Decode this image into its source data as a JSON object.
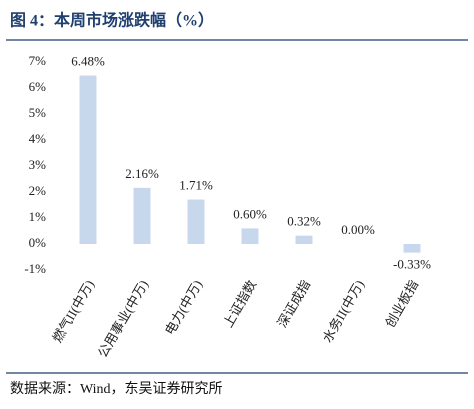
{
  "chart_data": {
    "type": "bar",
    "title": "图 4：本周市场涨跌幅（%）",
    "source": "数据来源：Wind，东吴证券研究所",
    "categories": [
      "燃气II(中万)",
      "公用事业(中万)",
      "电力(中万)",
      "上证指数",
      "深证成指",
      "水务II(中万)",
      "创业板指"
    ],
    "values": [
      6.48,
      2.16,
      1.71,
      0.6,
      0.32,
      0.0,
      -0.33
    ],
    "value_labels": [
      "6.48%",
      "2.16%",
      "1.71%",
      "0.60%",
      "0.32%",
      "0.00%",
      "-0.33%"
    ],
    "color": "#c7d8ec",
    "ylim": [
      -1,
      7
    ],
    "yticks": [
      {
        "value": -1,
        "label": "-1%"
      },
      {
        "value": 0,
        "label": "0%"
      },
      {
        "value": 1,
        "label": "1%"
      },
      {
        "value": 2,
        "label": "2%"
      },
      {
        "value": 3,
        "label": "3%"
      },
      {
        "value": 4,
        "label": "4%"
      },
      {
        "value": 5,
        "label": "5%"
      },
      {
        "value": 6,
        "label": "6%"
      },
      {
        "value": 7,
        "label": "7%"
      }
    ]
  }
}
